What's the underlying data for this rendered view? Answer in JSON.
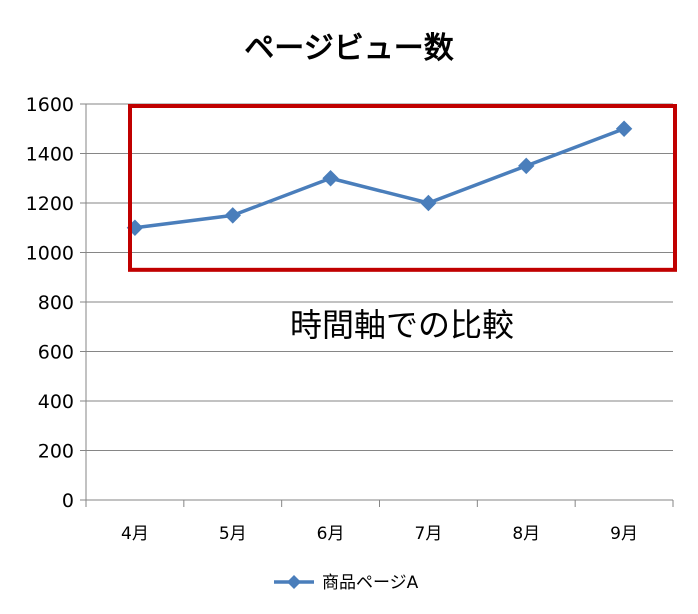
{
  "chart_data": {
    "type": "line",
    "title": "ページビュー数",
    "xlabel": "",
    "ylabel": "",
    "categories": [
      "4月",
      "5月",
      "6月",
      "7月",
      "8月",
      "9月"
    ],
    "series": [
      {
        "name": "商品ページA",
        "values": [
          1100,
          1150,
          1300,
          1200,
          1350,
          1500
        ],
        "color": "#4a7ebb"
      }
    ],
    "ylim": [
      0,
      1600
    ],
    "yticks": [
      0,
      200,
      400,
      600,
      800,
      1000,
      1200,
      1400,
      1600
    ],
    "grid": true,
    "legend": "bottom",
    "annotation": {
      "text": "時間軸での比較",
      "box_color": "#c00000",
      "box_y_range": [
        930,
        1600
      ]
    }
  }
}
